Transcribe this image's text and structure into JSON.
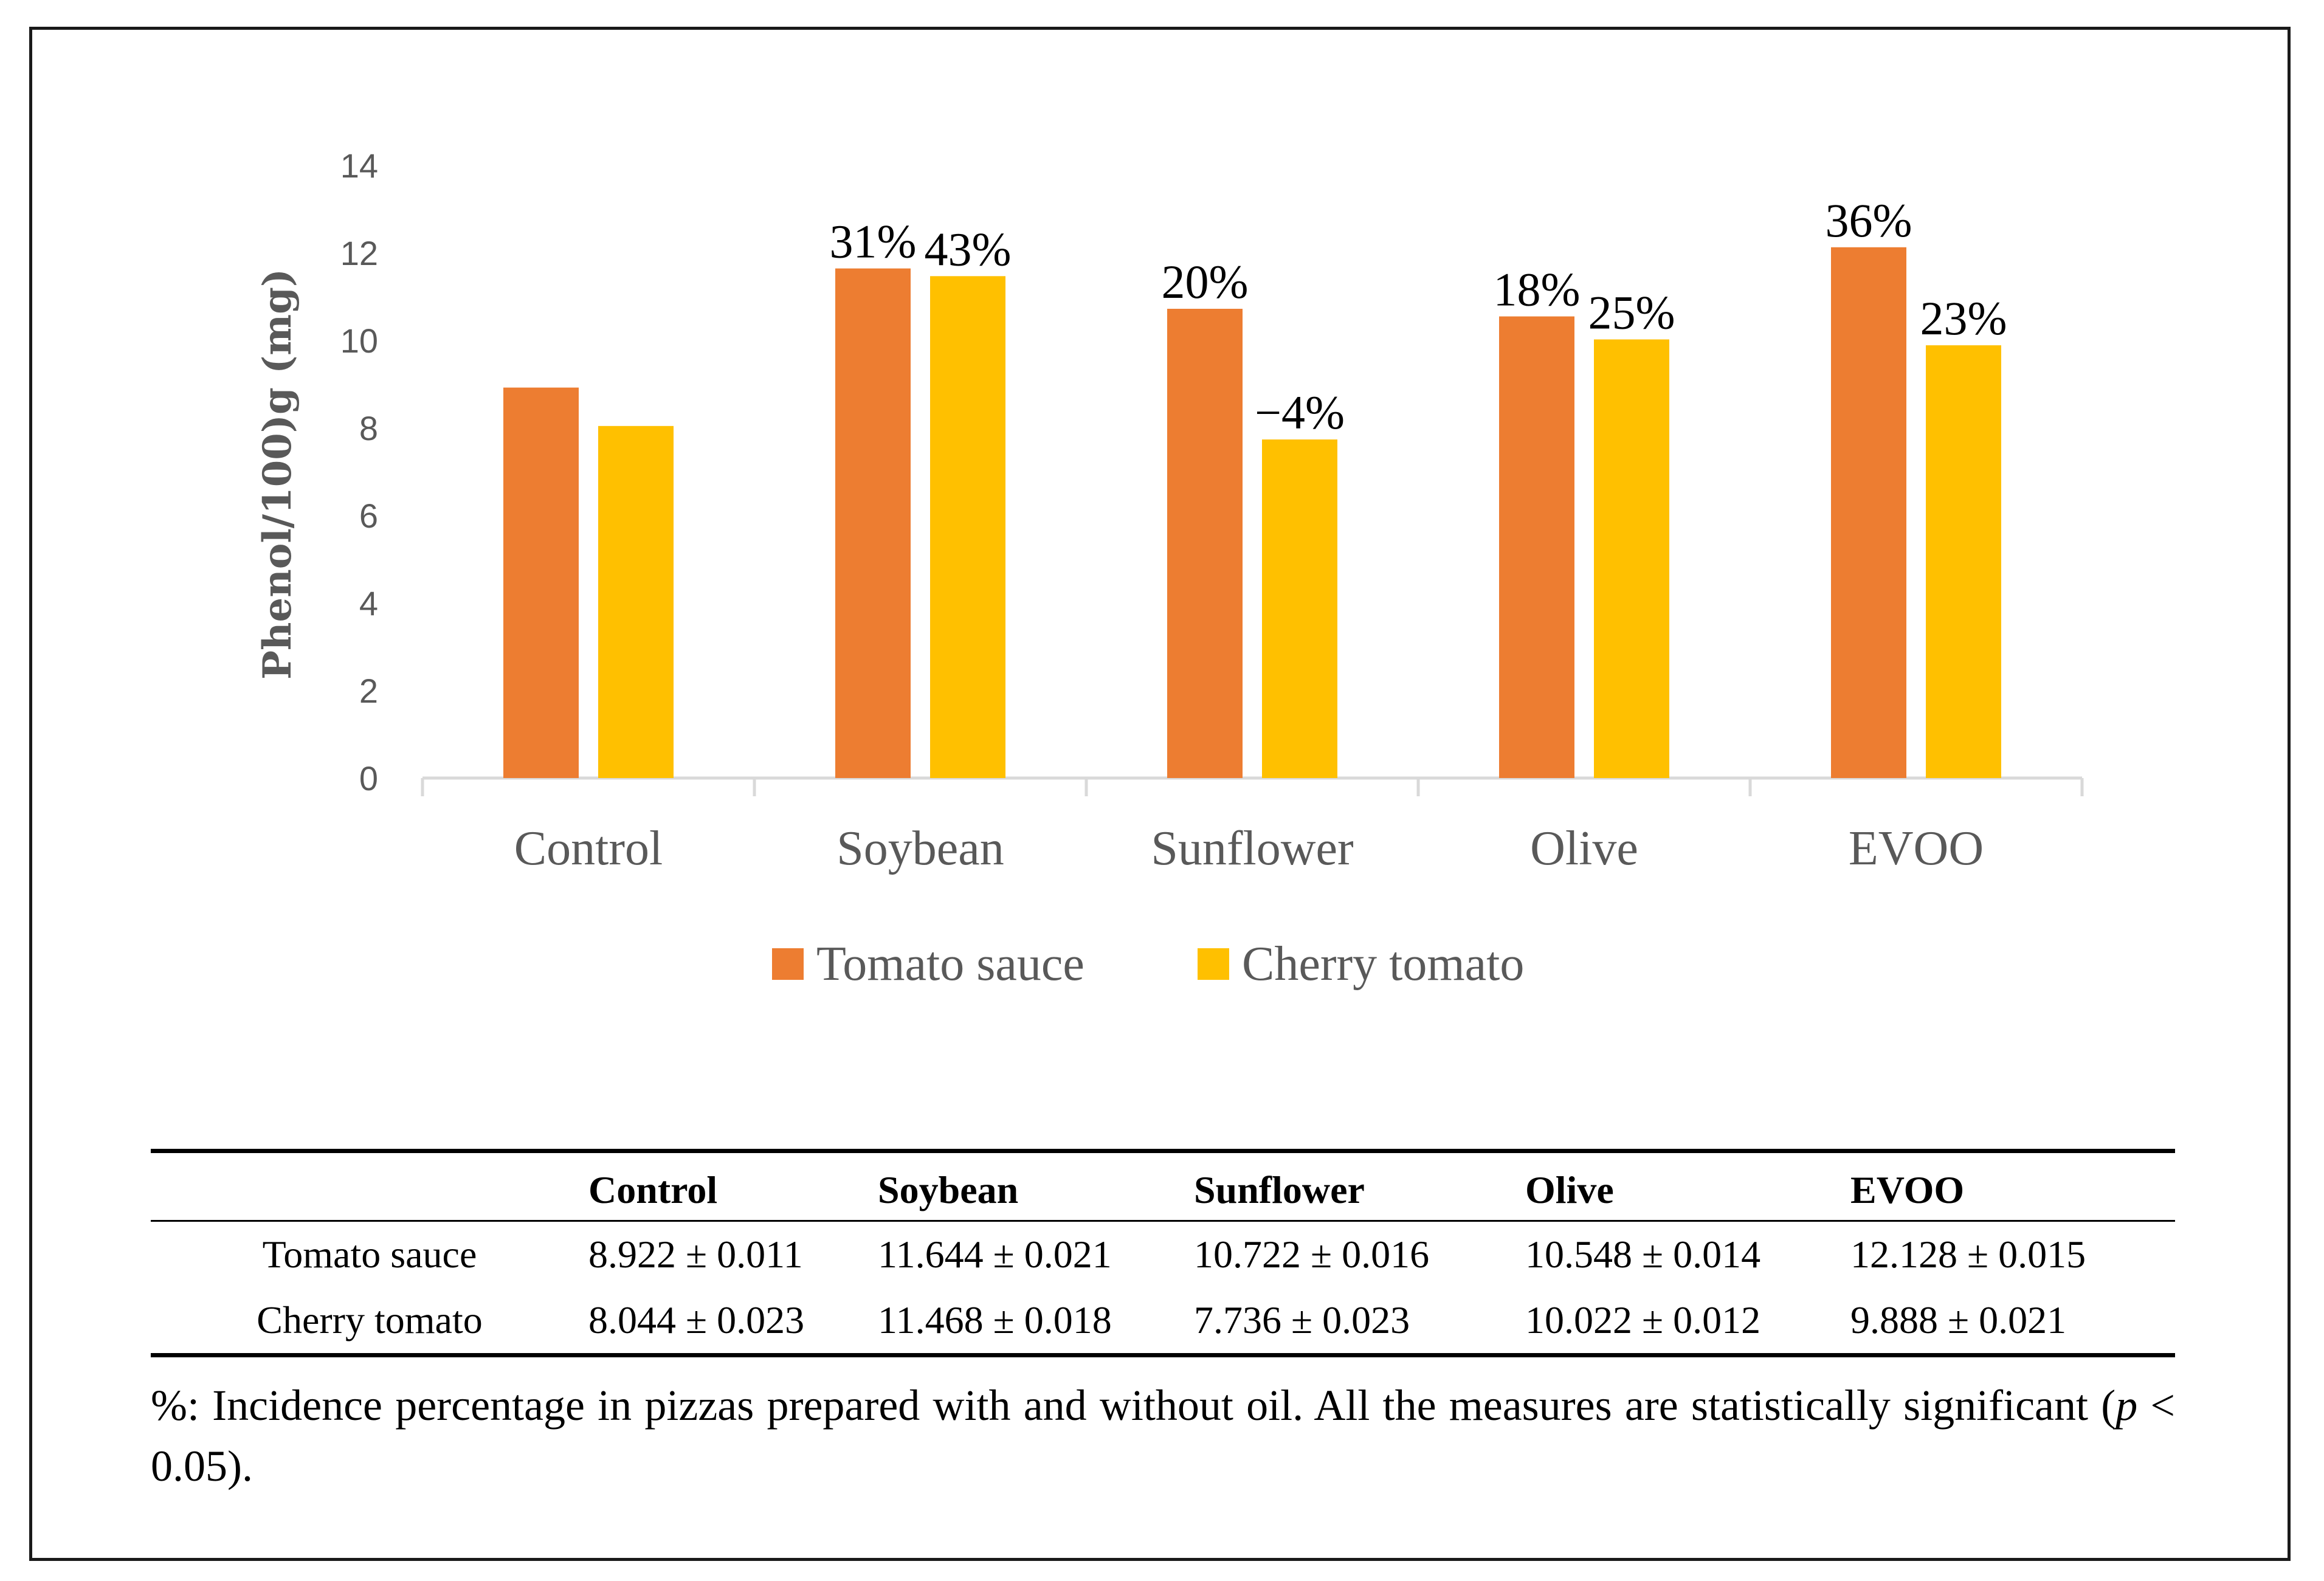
{
  "chart_data": {
    "type": "bar",
    "ylabel": "Phenol/100)g (mg)",
    "ylim": [
      0,
      14
    ],
    "yticks": [
      0,
      2,
      4,
      6,
      8,
      10,
      12,
      14
    ],
    "categories": [
      "Control",
      "Soybean",
      "Sunflower",
      "Olive",
      "EVOO"
    ],
    "series": [
      {
        "name": "Tomato sauce",
        "color": "#ED7D31",
        "values": [
          8.922,
          11.644,
          10.722,
          10.548,
          12.128
        ],
        "labels": [
          "",
          "31%",
          "20%",
          "18%",
          "36%"
        ]
      },
      {
        "name": "Cherry tomato",
        "color": "#FFC000",
        "values": [
          8.044,
          11.468,
          7.736,
          10.022,
          9.888
        ],
        "labels": [
          "",
          "43%",
          "−4%",
          "25%",
          "23%"
        ]
      }
    ],
    "legend": "bottom"
  },
  "table": {
    "headers": [
      "",
      "Control",
      "Soybean",
      "Sunflower",
      "Olive",
      "EVOO"
    ],
    "rows": [
      [
        "Tomato sauce",
        "8.922 ± 0.011",
        "11.644 ± 0.021",
        "10.722 ± 0.016",
        "10.548 ± 0.014",
        "12.128 ± 0.015"
      ],
      [
        "Cherry tomato",
        "8.044 ± 0.023",
        "11.468 ± 0.018",
        "7.736 ± 0.023",
        "10.022 ± 0.012",
        "9.888 ± 0.021"
      ]
    ]
  },
  "footnote": {
    "part1": "%: Incidence percentage in pizzas prepared with and without oil. All the measures are statistically significant (",
    "p": "p",
    "part2": " < 0.05)."
  }
}
